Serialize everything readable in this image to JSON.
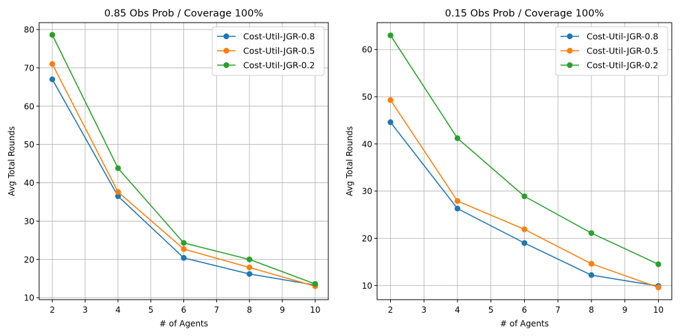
{
  "chart_data": [
    {
      "type": "line",
      "title": "0.85 Obs Prob / Coverage 100%",
      "xlabel": "# of Agents",
      "ylabel": "Avg Total Rounds",
      "xlim": [
        1.6,
        10.4
      ],
      "ylim": [
        9.5,
        81.8
      ],
      "xticks": [
        2,
        3,
        4,
        5,
        6,
        7,
        8,
        9,
        10
      ],
      "yticks": [
        10,
        20,
        30,
        40,
        50,
        60,
        70,
        80
      ],
      "grid": true,
      "legend_position": "top-right",
      "x": [
        2,
        4,
        6,
        8,
        10
      ],
      "series": [
        {
          "name": "Cost-Util-JGR-0.8",
          "color": "#1f77b4",
          "values": [
            67.0,
            36.5,
            20.4,
            16.2,
            13.3
          ]
        },
        {
          "name": "Cost-Util-JGR-0.5",
          "color": "#ff7f0e",
          "values": [
            71.0,
            37.6,
            22.7,
            17.9,
            13.0
          ]
        },
        {
          "name": "Cost-Util-JGR-0.2",
          "color": "#2ca02c",
          "values": [
            78.6,
            43.8,
            24.3,
            20.0,
            13.6
          ]
        }
      ]
    },
    {
      "type": "line",
      "title": "0.15 Obs Prob / Coverage 100%",
      "xlabel": "# of Agents",
      "ylabel": "Avg Total Rounds",
      "xlim": [
        1.6,
        10.4
      ],
      "ylim": [
        7.0,
        65.7
      ],
      "xticks": [
        2,
        3,
        4,
        5,
        6,
        7,
        8,
        9,
        10
      ],
      "yticks": [
        10,
        20,
        30,
        40,
        50,
        60
      ],
      "grid": true,
      "legend_position": "top-right",
      "x": [
        2,
        4,
        6,
        8,
        10
      ],
      "series": [
        {
          "name": "Cost-Util-JGR-0.8",
          "color": "#1f77b4",
          "values": [
            44.6,
            26.3,
            19.0,
            12.2,
            9.9
          ]
        },
        {
          "name": "Cost-Util-JGR-0.5",
          "color": "#ff7f0e",
          "values": [
            49.3,
            27.9,
            21.9,
            14.6,
            9.6
          ]
        },
        {
          "name": "Cost-Util-JGR-0.2",
          "color": "#2ca02c",
          "values": [
            63.0,
            41.2,
            28.9,
            21.1,
            14.5
          ]
        }
      ]
    }
  ]
}
